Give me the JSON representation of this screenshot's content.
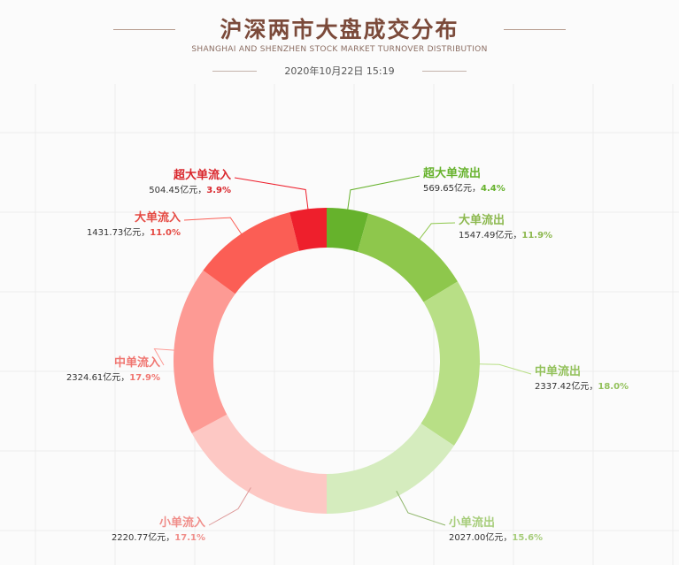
{
  "header": {
    "title": "沪深两市大盘成交分布",
    "subtitle": "SHANGHAI AND SHENZHEN STOCK MARKET TURNOVER DISTRIBUTION",
    "date": "2020年10月22日 15:19"
  },
  "chart_data": {
    "type": "pie",
    "title": "沪深两市大盘成交分布",
    "subtitle": "SHANGHAI AND SHENZHEN STOCK MARKET TURNOVER DISTRIBUTION",
    "donut": true,
    "unit": "亿元",
    "slices": [
      {
        "name": "超大单流出",
        "value": 569.65,
        "value_label": "569.65亿元",
        "percent_label": "4.4%",
        "color": "#66b22c"
      },
      {
        "name": "大单流出",
        "value": 1547.49,
        "value_label": "1547.49亿元",
        "percent_label": "11.9%",
        "color": "#8ec74c"
      },
      {
        "name": "中单流出",
        "value": 2337.42,
        "value_label": "2337.42亿元",
        "percent_label": "18.0%",
        "color": "#b8df86"
      },
      {
        "name": "小单流出",
        "value": 2027.0,
        "value_label": "2027.00亿元",
        "percent_label": "15.6%",
        "color": "#d5ecbe"
      },
      {
        "name": "小单流入",
        "value": 2220.77,
        "value_label": "2220.77亿元",
        "percent_label": "17.1%",
        "color": "#fdc8c4"
      },
      {
        "name": "中单流入",
        "value": 2324.61,
        "value_label": "2324.61亿元",
        "percent_label": "17.9%",
        "color": "#fd9a94"
      },
      {
        "name": "大单流入",
        "value": 1431.73,
        "value_label": "1431.73亿元",
        "percent_label": "11.0%",
        "color": "#fb5e55"
      },
      {
        "name": "超大单流入",
        "value": 504.45,
        "value_label": "504.45亿元",
        "percent_label": "3.9%",
        "color": "#ee1f2c"
      }
    ],
    "label_colors": {
      "超大单流出": "#66b22c",
      "大单流出": "#8cb84e",
      "中单流出": "#93c15b",
      "小单流出": "#a7cd7b",
      "小单流入": "#f08e8a",
      "中单流入": "#f07671",
      "大单流入": "#e54a43",
      "超大单流入": "#d9252b"
    }
  }
}
